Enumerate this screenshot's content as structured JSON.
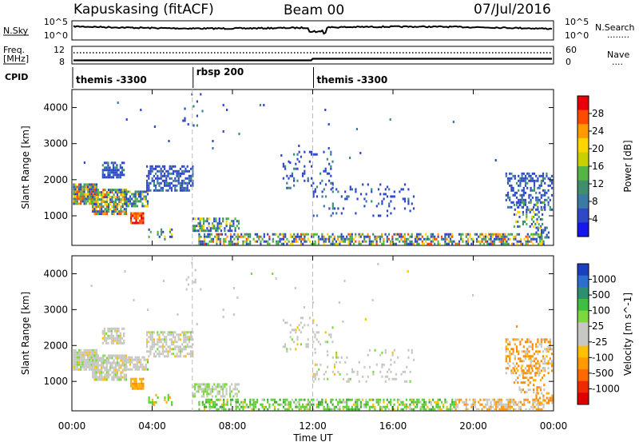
{
  "header": {
    "station": "Kapuskasing (fitACF)",
    "beam": "Beam 00",
    "date": "07/Jul/2016"
  },
  "top_panel": {
    "left_label": "N.Sky",
    "left_ticks": [
      "10^5",
      "10^0"
    ],
    "right_ticks": [
      "10^5",
      "10^0"
    ],
    "right_label": "N.Search",
    "right_symbol": "........"
  },
  "freq_panel": {
    "left_label_1": "Freq.",
    "left_label_2": "[MHz]",
    "left_ticks": [
      "12",
      "8"
    ],
    "right_ticks": [
      "60",
      "0"
    ],
    "right_label": "Nave",
    "right_symbol": "....",
    "cpid_label": "CPID"
  },
  "cpid_segments": [
    {
      "label": "themis -3300",
      "start_hour": 0
    },
    {
      "label": "rbsp 200",
      "start_hour": 6
    },
    {
      "label": "themis -3300",
      "start_hour": 12
    }
  ],
  "chart_data": [
    {
      "type": "heatmap",
      "name": "power",
      "ylabel": "Slant Range [km]",
      "xlim": [
        0,
        24
      ],
      "ylim": [
        180,
        4500
      ],
      "yticks": [
        1000,
        2000,
        3000,
        4000
      ],
      "colorbar": {
        "label": "Power [dB]",
        "ticks": [
          "28",
          "24",
          "20",
          "16",
          "12",
          "8",
          "4"
        ],
        "colors": [
          "#e8000b",
          "#ff4b00",
          "#ff9a00",
          "#ffd500",
          "#c8d000",
          "#55b543",
          "#3f8f6e",
          "#3c7aa6",
          "#2f48c8",
          "#1616f0"
        ]
      }
    },
    {
      "type": "heatmap",
      "name": "velocity",
      "ylabel": "Slant Range [km]",
      "xlabel": "Time UT",
      "xlim": [
        0,
        24
      ],
      "ylim": [
        180,
        4500
      ],
      "yticks": [
        1000,
        2000,
        3000,
        4000
      ],
      "xticks": [
        "00:00",
        "04:00",
        "08:00",
        "12:00",
        "16:00",
        "20:00",
        "00:00"
      ],
      "colorbar": {
        "label": "Velocity [m s^-1]",
        "ticks": [
          "1000",
          "500",
          "100",
          "25",
          "-25",
          "-100",
          "-500",
          "-1000"
        ],
        "colors": [
          "#1a3fbf",
          "#2c6fd0",
          "#2e8f6e",
          "#3fbf3f",
          "#7ad93d",
          "#c7c7c3",
          "#c7c7c3",
          "#ffc000",
          "#ff9a00",
          "#ff6a00",
          "#ee2a00",
          "#e00000"
        ]
      }
    }
  ]
}
